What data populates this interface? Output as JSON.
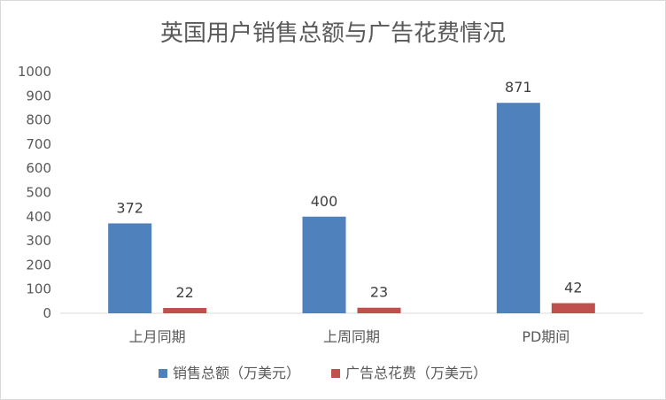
{
  "chart_data": {
    "type": "bar",
    "title": "英国用户销售总额与广告花费情况",
    "categories": [
      "上月同期",
      "上周同期",
      "PD期间"
    ],
    "series": [
      {
        "name": "销售总额（万美元）",
        "values": [
          372,
          400,
          871
        ],
        "color": "#4f81bd"
      },
      {
        "name": "广告总花费（万美元）",
        "values": [
          22,
          23,
          42
        ],
        "color": "#c0504d"
      }
    ],
    "ylim": [
      0,
      1000
    ],
    "yticks": [
      0,
      100,
      200,
      300,
      400,
      500,
      600,
      700,
      800,
      900,
      1000
    ],
    "grid": false,
    "legend": "bottom"
  }
}
